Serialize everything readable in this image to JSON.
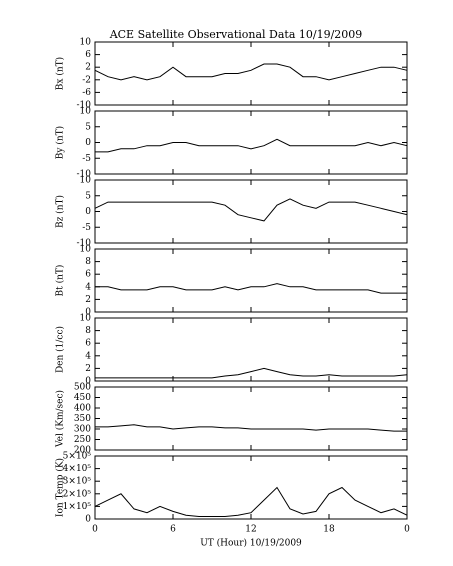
{
  "chart_data": [
    {
      "type": "line",
      "title": "ACE Satellite Observational Data    10/19/2009",
      "ylabel": "Bx (nT)",
      "x": [
        0,
        1,
        2,
        3,
        4,
        5,
        6,
        7,
        8,
        9,
        10,
        11,
        12,
        13,
        14,
        15,
        16,
        17,
        18,
        19,
        20,
        21,
        22,
        23,
        24
      ],
      "xlim": [
        0,
        24
      ],
      "xticks": [
        0,
        6,
        12,
        18,
        24
      ],
      "series": [
        {
          "name": "Bx",
          "color": "#000000",
          "values": [
            1,
            -1,
            -2,
            -1,
            -2,
            -1,
            2,
            -1,
            -1,
            -1,
            0,
            0,
            1,
            3,
            3,
            2,
            -1,
            -1,
            -2,
            -1,
            0,
            1,
            2,
            2,
            1
          ]
        }
      ],
      "ylim": [
        -10,
        10
      ],
      "yticks": [
        -10,
        -6,
        -2,
        2,
        6,
        10
      ]
    },
    {
      "type": "line",
      "ylabel": "By (nT)",
      "x": [
        0,
        1,
        2,
        3,
        4,
        5,
        6,
        7,
        8,
        9,
        10,
        11,
        12,
        13,
        14,
        15,
        16,
        17,
        18,
        19,
        20,
        21,
        22,
        23,
        24
      ],
      "xlim": [
        0,
        24
      ],
      "xticks": [
        0,
        6,
        12,
        18,
        24
      ],
      "series": [
        {
          "name": "By",
          "color": "#000000",
          "values": [
            -3,
            -3,
            -2,
            -2,
            -1,
            -1,
            0,
            0,
            -1,
            -1,
            -1,
            -1,
            -2,
            -1,
            1,
            -1,
            -1,
            -1,
            -1,
            -1,
            -1,
            0,
            -1,
            0,
            -1
          ]
        }
      ],
      "ylim": [
        -10,
        10
      ],
      "yticks": [
        -10,
        -5,
        0,
        5,
        10
      ]
    },
    {
      "type": "line",
      "ylabel": "Bz (nT)",
      "x": [
        0,
        1,
        2,
        3,
        4,
        5,
        6,
        7,
        8,
        9,
        10,
        11,
        12,
        13,
        14,
        15,
        16,
        17,
        18,
        19,
        20,
        21,
        22,
        23,
        24
      ],
      "xlim": [
        0,
        24
      ],
      "xticks": [
        0,
        6,
        12,
        18,
        24
      ],
      "series": [
        {
          "name": "Bz",
          "color": "#000000",
          "values": [
            1,
            3,
            3,
            3,
            3,
            3,
            3,
            3,
            3,
            3,
            2,
            -1,
            -2,
            -3,
            2,
            4,
            2,
            1,
            3,
            3,
            3,
            2,
            1,
            0,
            -1
          ]
        }
      ],
      "ylim": [
        -10,
        10
      ],
      "yticks": [
        -10,
        -5,
        0,
        5,
        10
      ]
    },
    {
      "type": "line",
      "ylabel": "Bt (nT)",
      "x": [
        0,
        1,
        2,
        3,
        4,
        5,
        6,
        7,
        8,
        9,
        10,
        11,
        12,
        13,
        14,
        15,
        16,
        17,
        18,
        19,
        20,
        21,
        22,
        23,
        24
      ],
      "xlim": [
        0,
        24
      ],
      "xticks": [
        0,
        6,
        12,
        18,
        24
      ],
      "series": [
        {
          "name": "Bt",
          "color": "#000000",
          "values": [
            4,
            4,
            3.5,
            3.5,
            3.5,
            4,
            4,
            3.5,
            3.5,
            3.5,
            4,
            3.5,
            4,
            4,
            4.5,
            4,
            4,
            3.5,
            3.5,
            3.5,
            3.5,
            3.5,
            3,
            3,
            3
          ]
        }
      ],
      "ylim": [
        0,
        10
      ],
      "yticks": [
        0,
        2,
        4,
        6,
        8,
        10
      ]
    },
    {
      "type": "line",
      "ylabel": "Den (1/cc)",
      "x": [
        0,
        1,
        2,
        3,
        4,
        5,
        6,
        7,
        8,
        9,
        10,
        11,
        12,
        13,
        14,
        15,
        16,
        17,
        18,
        19,
        20,
        21,
        22,
        23,
        24
      ],
      "xlim": [
        0,
        24
      ],
      "xticks": [
        0,
        6,
        12,
        18,
        24
      ],
      "series": [
        {
          "name": "Den",
          "color": "#000000",
          "values": [
            0.5,
            0.5,
            0.5,
            0.5,
            0.5,
            0.5,
            0.5,
            0.5,
            0.5,
            0.5,
            0.8,
            1,
            1.5,
            2,
            1.5,
            1,
            0.8,
            0.8,
            1,
            0.8,
            0.8,
            0.8,
            0.8,
            0.8,
            1
          ]
        }
      ],
      "ylim": [
        0,
        10
      ],
      "yticks": [
        0,
        2,
        4,
        6,
        8,
        10
      ]
    },
    {
      "type": "line",
      "ylabel": "Vel (Km/sec)",
      "x": [
        0,
        1,
        2,
        3,
        4,
        5,
        6,
        7,
        8,
        9,
        10,
        11,
        12,
        13,
        14,
        15,
        16,
        17,
        18,
        19,
        20,
        21,
        22,
        23,
        24
      ],
      "xlim": [
        0,
        24
      ],
      "xticks": [
        0,
        6,
        12,
        18,
        24
      ],
      "series": [
        {
          "name": "Vel",
          "color": "#000000",
          "values": [
            310,
            310,
            315,
            320,
            310,
            310,
            300,
            305,
            310,
            310,
            305,
            305,
            300,
            300,
            300,
            300,
            300,
            295,
            300,
            300,
            300,
            300,
            295,
            290,
            290
          ]
        }
      ],
      "ylim": [
        200,
        500
      ],
      "yticks": [
        200,
        250,
        300,
        350,
        400,
        450,
        500
      ]
    },
    {
      "type": "line",
      "ylabel": "Ion Temp (K)",
      "xlabel": "UT (Hour)   10/19/2009",
      "x": [
        0,
        1,
        2,
        3,
        4,
        5,
        6,
        7,
        8,
        9,
        10,
        11,
        12,
        13,
        14,
        15,
        16,
        17,
        18,
        19,
        20,
        21,
        22,
        23,
        24
      ],
      "xlim": [
        0,
        24
      ],
      "xticks": [
        0,
        6,
        12,
        18,
        {
          "value": 24,
          "label": "0"
        }
      ],
      "series": [
        {
          "name": "Ion Temp",
          "color": "#000000",
          "values": [
            100000,
            150000,
            200000,
            80000,
            50000,
            100000,
            60000,
            30000,
            20000,
            20000,
            20000,
            30000,
            50000,
            150000,
            250000,
            80000,
            40000,
            60000,
            200000,
            250000,
            150000,
            100000,
            50000,
            80000,
            30000
          ]
        }
      ],
      "ylim": [
        0,
        500000
      ],
      "yticks": [
        0,
        {
          "value": 100000,
          "label": "1×10⁵"
        },
        {
          "value": 200000,
          "label": "2×10⁵"
        },
        {
          "value": 300000,
          "label": "3×10⁵"
        },
        {
          "value": 400000,
          "label": "4×10⁵"
        },
        {
          "value": 500000,
          "label": "5×10⁵"
        }
      ]
    }
  ]
}
